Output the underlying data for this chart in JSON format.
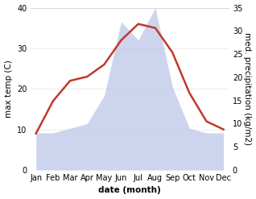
{
  "months": [
    "Jan",
    "Feb",
    "Mar",
    "Apr",
    "May",
    "Jun",
    "Jul",
    "Aug",
    "Sep",
    "Oct",
    "Nov",
    "Dec"
  ],
  "temperature": [
    9,
    17,
    22,
    23,
    26,
    32,
    36,
    35,
    29,
    19,
    12,
    10
  ],
  "precipitation": [
    8,
    8,
    9,
    10,
    16,
    32,
    28,
    35,
    18,
    9,
    8,
    8
  ],
  "temp_color": "#c0392b",
  "precip_color_fill": "#b8c4e8",
  "temp_ylim": [
    0,
    40
  ],
  "precip_ylim": [
    0,
    35
  ],
  "temp_yticks": [
    0,
    10,
    20,
    30,
    40
  ],
  "precip_yticks": [
    0,
    5,
    10,
    15,
    20,
    25,
    30,
    35
  ],
  "xlabel": "date (month)",
  "ylabel_left": "max temp (C)",
  "ylabel_right": "med. precipitation (kg/m2)",
  "bg_color": "#ffffff",
  "plot_bg_color": "#ffffff",
  "label_fontsize": 7.5,
  "tick_fontsize": 7.0
}
